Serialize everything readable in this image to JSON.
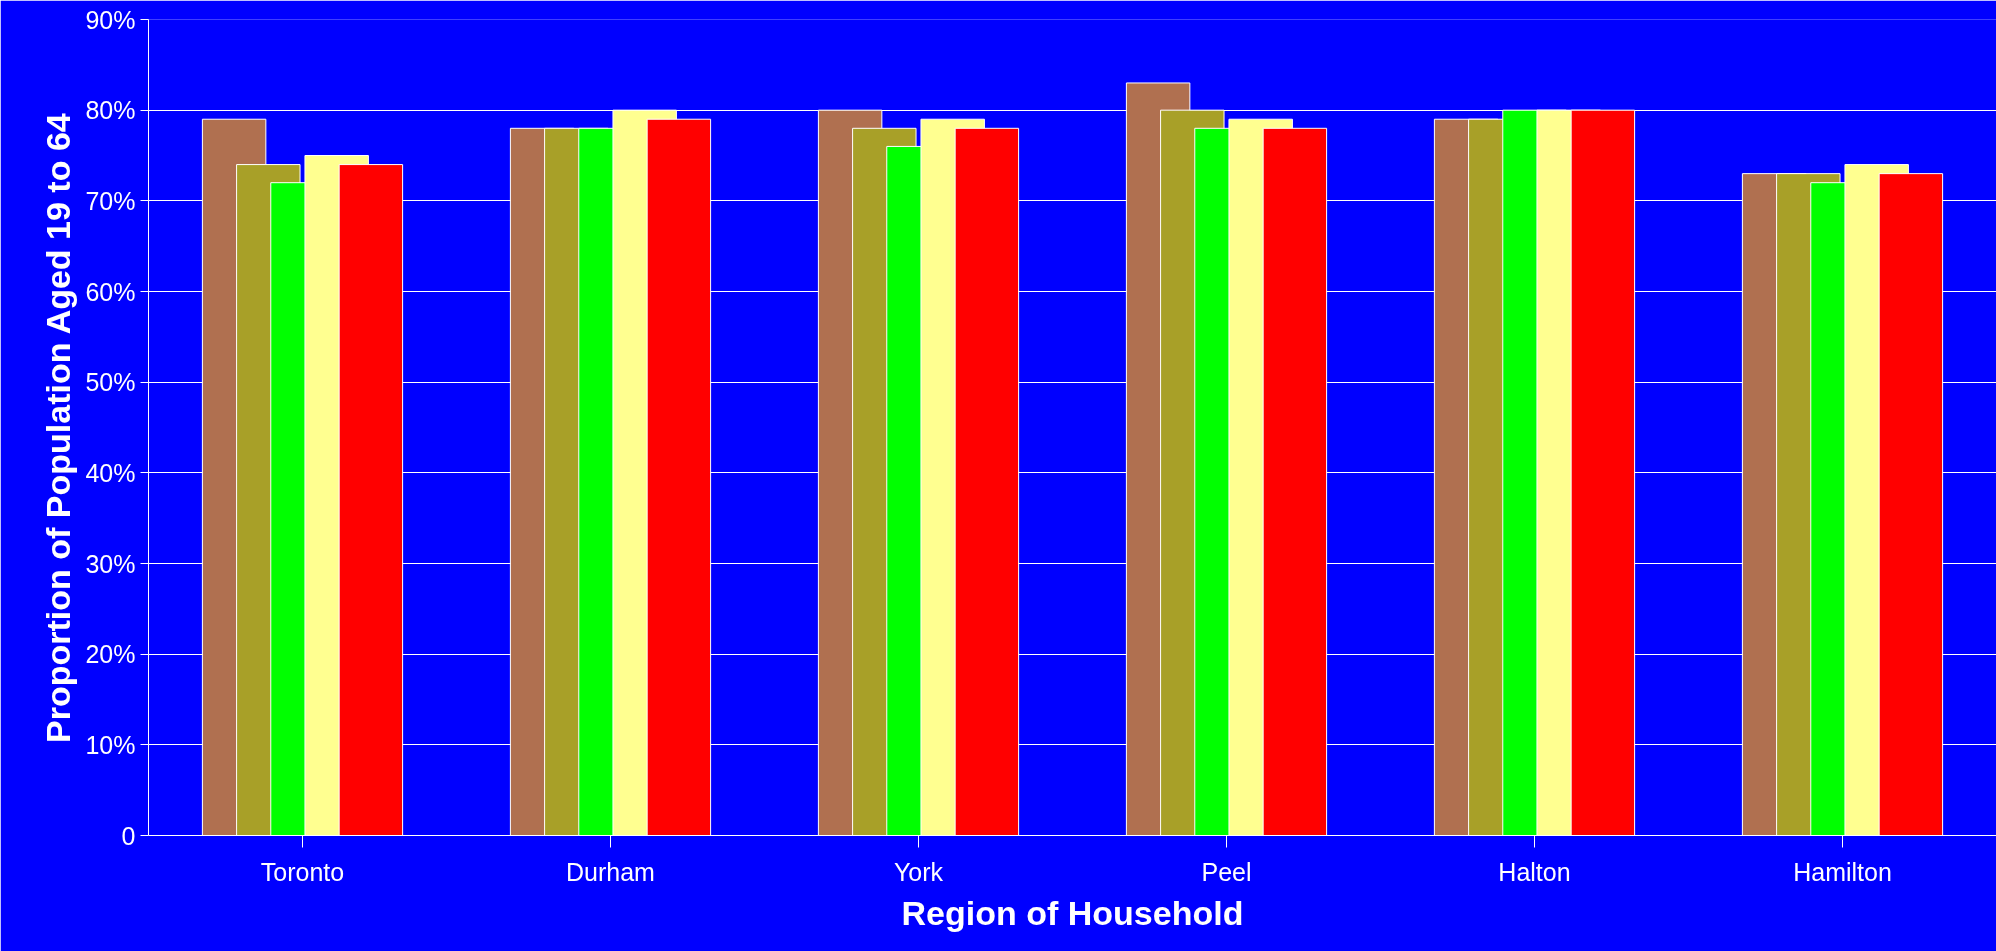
{
  "chart_data": {
    "type": "bar",
    "xlabel": "Region of Household",
    "ylabel": "Proportion of Population Aged 19 to 64",
    "categories": [
      "Toronto",
      "Durham",
      "York",
      "Peel",
      "Halton",
      "Hamilton"
    ],
    "series": [
      {
        "color": "#b07050",
        "values": [
          79,
          78,
          80,
          83,
          79,
          73
        ]
      },
      {
        "color": "#a8a028",
        "values": [
          74,
          78,
          78,
          80,
          79,
          73
        ]
      },
      {
        "color": "#00ff00",
        "values": [
          72,
          78,
          76,
          78,
          80,
          72
        ]
      },
      {
        "color": "#ffff90",
        "values": [
          75,
          80,
          79,
          79,
          80,
          74
        ]
      },
      {
        "color": "#ff0000",
        "values": [
          74,
          79,
          78,
          78,
          80,
          73
        ]
      }
    ],
    "ylim": [
      0,
      90
    ],
    "yticks": [
      {
        "value": 0,
        "label": "0"
      },
      {
        "value": 10,
        "label": "10%"
      },
      {
        "value": 20,
        "label": "20%"
      },
      {
        "value": 30,
        "label": "30%"
      },
      {
        "value": 40,
        "label": "40%"
      },
      {
        "value": 50,
        "label": "50%"
      },
      {
        "value": 60,
        "label": "60%"
      },
      {
        "value": 70,
        "label": "70%"
      },
      {
        "value": 80,
        "label": "80%"
      },
      {
        "value": 90,
        "label": "90%"
      }
    ],
    "grid": "y"
  }
}
